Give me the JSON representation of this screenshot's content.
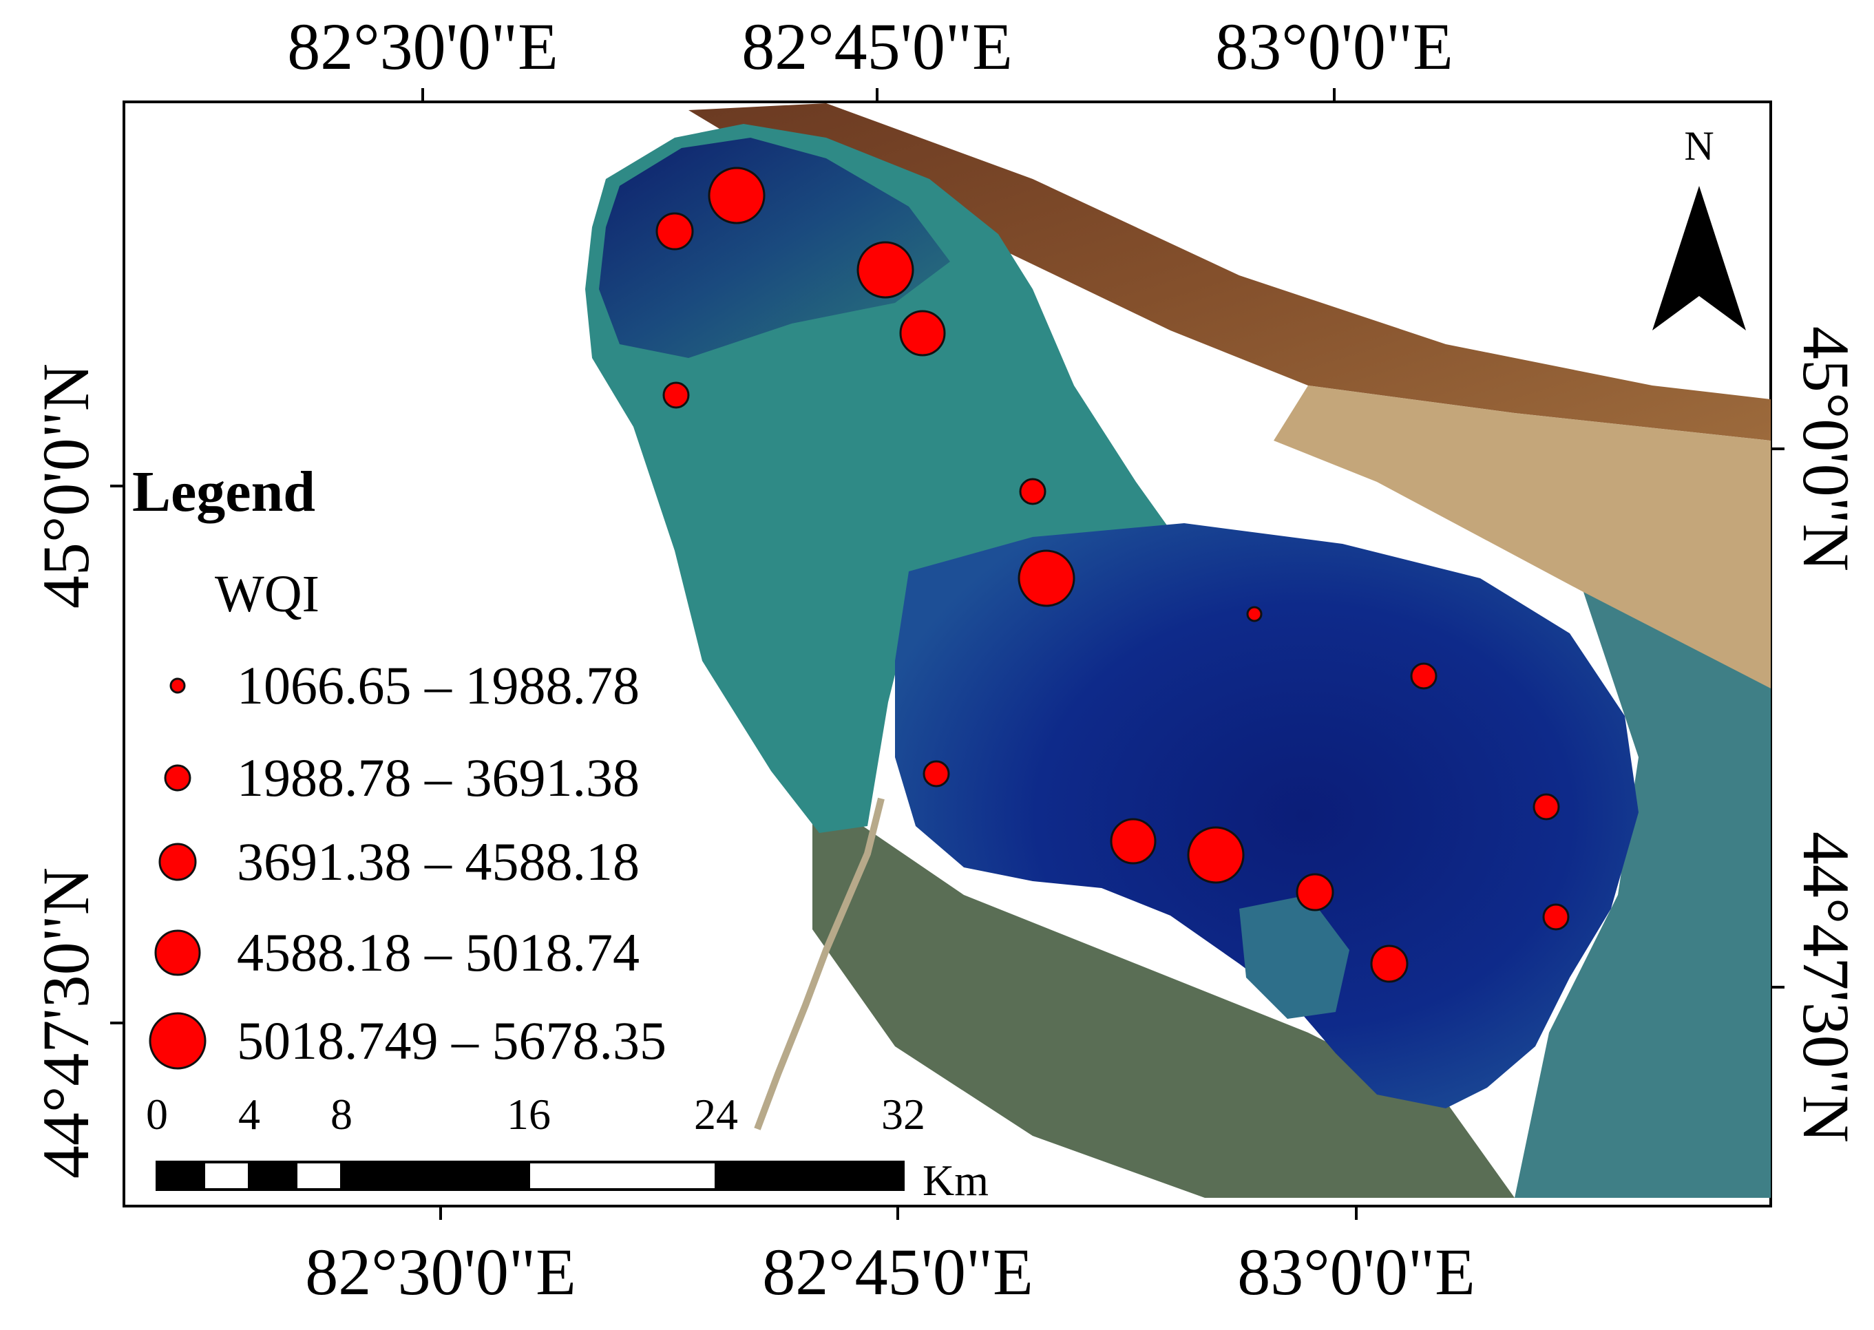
{
  "map": {
    "top_axis_labels": [
      "82°30'0\"E",
      "82°45'0\"E",
      "83°0'0\"E"
    ],
    "bottom_axis_labels": [
      "82°30'0\"E",
      "82°45'0\"E",
      "83°0'0\"E"
    ],
    "left_axis_labels": [
      "45°0'0\"N",
      "44°47'30\"N"
    ],
    "right_axis_labels": [
      "45°0'0\"N",
      "44°47'30\"N"
    ],
    "north_arrow_label": "N",
    "colors": {
      "marker_fill": "#ff0000",
      "lake_deep": "#0a1a6e",
      "lake_shallow": "#2f8a86",
      "land_brown": "#7a4a2a",
      "desert": "#c4a67a"
    }
  },
  "legend": {
    "title": "Legend",
    "field": "WQI",
    "classes": [
      {
        "label": "1066.65 – 1988.78"
      },
      {
        "label": "1988.78 – 3691.38"
      },
      {
        "label": "3691.38 – 4588.18"
      },
      {
        "label": "4588.18 – 5018.74"
      },
      {
        "label": "5018.749 – 5678.35"
      }
    ]
  },
  "scale_bar": {
    "ticks": [
      "0",
      "4",
      "8",
      "16",
      "24",
      "32"
    ],
    "unit": "Km"
  },
  "sampling_points": [
    {
      "id": "p1",
      "wqi_class": 5
    },
    {
      "id": "p2",
      "wqi_class": 3
    },
    {
      "id": "p3",
      "wqi_class": 5
    },
    {
      "id": "p4",
      "wqi_class": 4
    },
    {
      "id": "p5",
      "wqi_class": 2
    },
    {
      "id": "p6",
      "wqi_class": 2
    },
    {
      "id": "p7",
      "wqi_class": 5
    },
    {
      "id": "p8",
      "wqi_class": 1
    },
    {
      "id": "p9",
      "wqi_class": 2
    },
    {
      "id": "p10",
      "wqi_class": 2
    },
    {
      "id": "p11",
      "wqi_class": 4
    },
    {
      "id": "p12",
      "wqi_class": 5
    },
    {
      "id": "p13",
      "wqi_class": 2
    },
    {
      "id": "p14",
      "wqi_class": 3
    },
    {
      "id": "p15",
      "wqi_class": 2
    },
    {
      "id": "p16",
      "wqi_class": 3
    }
  ]
}
